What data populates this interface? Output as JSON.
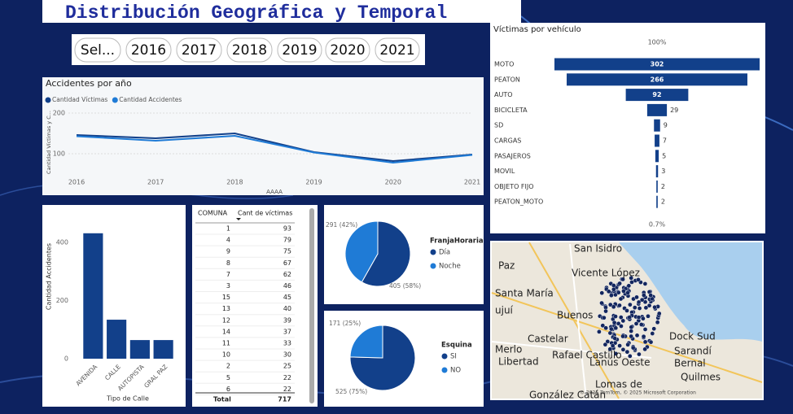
{
  "header": {
    "title": "Distribución Geográfica y Temporal"
  },
  "slicer": {
    "items": [
      "Sel...",
      "2016",
      "2017",
      "2018",
      "2019",
      "2020",
      "2021"
    ]
  },
  "chart_data": [
    {
      "type": "line",
      "title": "Accidentes por año",
      "x": [
        2016,
        2017,
        2018,
        2019,
        2020,
        2021
      ],
      "xlim": [
        2016,
        2021
      ],
      "xticks": [
        2016,
        2017,
        2018,
        2019,
        2020,
        2021
      ],
      "x_label": "AAAA",
      "y_label": "Cantidad Víctimas y C...",
      "ylim": [
        52,
        218
      ],
      "yticks": [
        100,
        200
      ],
      "grid": true,
      "series": [
        {
          "name": "Cantidad Víctimas",
          "color": "#12408a",
          "values": [
            146,
            138,
            150,
            104,
            82,
            98
          ]
        },
        {
          "name": "Cantidad Accidentes",
          "color": "#1f7bd6",
          "values": [
            143,
            132,
            144,
            103,
            78,
            97
          ]
        }
      ]
    },
    {
      "type": "funnel",
      "title": "Víctimas por vehículo",
      "categories": [
        "MOTO",
        "PEATON",
        "AUTO",
        "BICICLETA",
        "SD",
        "CARGAS",
        "PASAJEROS",
        "MOVIL",
        "OBJETO FIJO",
        "PEATON_MOTO"
      ],
      "values": [
        302,
        266,
        92,
        29,
        9,
        7,
        5,
        3,
        2,
        2
      ],
      "color": "#12408a",
      "top_label": "100%",
      "bottom_label": "0.7%"
    },
    {
      "type": "bar",
      "categories": [
        "AVENIDA",
        "CALLE",
        "AUTOPISTA",
        "GRAL PAZ"
      ],
      "values": [
        431,
        134,
        64,
        64
      ],
      "x_label": "Tipo de Calle",
      "y_label": "Cantidad Accidentes",
      "ylim": [
        0,
        450
      ],
      "yticks": [
        0,
        200,
        400
      ],
      "color": "#12408a"
    },
    {
      "type": "pie",
      "legend_title": "FranjaHoraria",
      "categories": [
        "Día",
        "Noche"
      ],
      "values": [
        405,
        291
      ],
      "value_labels": [
        "405 (58%)",
        "291 (42%)"
      ],
      "colors": [
        "#12408a",
        "#1f7bd6"
      ]
    },
    {
      "type": "pie",
      "legend_title": "Esquina",
      "categories": [
        "SI",
        "NO"
      ],
      "values": [
        525,
        171
      ],
      "value_labels": [
        "525 (75%)",
        "171 (25%)"
      ],
      "colors": [
        "#12408a",
        "#1f7bd6"
      ]
    }
  ],
  "table": {
    "columns": [
      "COMUNA",
      "Cant de víctimas"
    ],
    "rows": [
      [
        1,
        93
      ],
      [
        4,
        79
      ],
      [
        9,
        75
      ],
      [
        8,
        67
      ],
      [
        7,
        62
      ],
      [
        3,
        46
      ],
      [
        15,
        45
      ],
      [
        13,
        40
      ],
      [
        12,
        39
      ],
      [
        14,
        37
      ],
      [
        11,
        33
      ],
      [
        10,
        30
      ],
      [
        2,
        25
      ],
      [
        5,
        22
      ],
      [
        6,
        22
      ]
    ],
    "total": [
      "Total",
      717
    ]
  },
  "map": {
    "labels": [
      "San Isidro",
      "Paz",
      "Vicente López",
      "Santa María",
      "Buenos",
      "ujuí",
      "Castelar",
      "Merlo",
      "Rafael Castillo",
      "Libertad",
      "Lanús Oeste",
      "Dock Sud",
      "Sarandí",
      "Bernal",
      "Quilmes",
      "Lomas de",
      "González Catán"
    ],
    "attribution": "© 2025 TomTom, © 2025 Microsoft Corporation"
  }
}
